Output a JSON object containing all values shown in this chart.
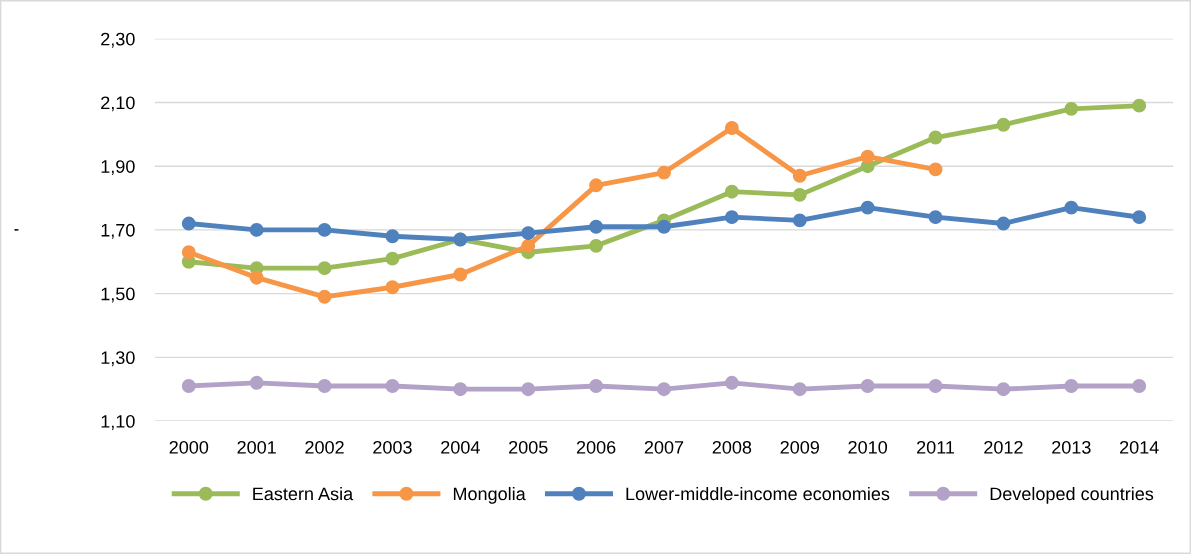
{
  "chart_data": {
    "type": "line",
    "ylabel": "'",
    "categories": [
      "2000",
      "2001",
      "2002",
      "2003",
      "2004",
      "2005",
      "2006",
      "2007",
      "2008",
      "2009",
      "2010",
      "2011",
      "2012",
      "2013",
      "2014"
    ],
    "series": [
      {
        "name": "Eastern Asia",
        "color": "#9bbb59",
        "values": [
          1.6,
          1.58,
          1.58,
          1.61,
          1.67,
          1.63,
          1.65,
          1.73,
          1.82,
          1.81,
          1.9,
          1.99,
          2.03,
          2.08,
          2.09
        ]
      },
      {
        "name": "Mongolia",
        "color": "#f79646",
        "values": [
          1.63,
          1.55,
          1.49,
          1.52,
          1.56,
          1.65,
          1.84,
          1.88,
          2.02,
          1.87,
          1.93,
          1.89,
          null,
          null,
          null
        ]
      },
      {
        "name": "Lower-middle-income economies",
        "color": "#4f81bd",
        "values": [
          1.72,
          1.7,
          1.7,
          1.68,
          1.67,
          1.69,
          1.71,
          1.71,
          1.74,
          1.73,
          1.77,
          1.74,
          1.72,
          1.77,
          1.74
        ]
      },
      {
        "name": "Developed countries",
        "color": "#b3a2c7",
        "values": [
          1.21,
          1.22,
          1.21,
          1.21,
          1.2,
          1.2,
          1.21,
          1.2,
          1.22,
          1.2,
          1.21,
          1.21,
          1.2,
          1.21,
          1.21
        ]
      }
    ],
    "ylim": [
      1.1,
      2.3
    ],
    "yticks": [
      {
        "value": 1.1,
        "label": "1,10"
      },
      {
        "value": 1.3,
        "label": "1,30"
      },
      {
        "value": 1.5,
        "label": "1,50"
      },
      {
        "value": 1.7,
        "label": "1,70"
      },
      {
        "value": 1.9,
        "label": "1,90"
      },
      {
        "value": 2.1,
        "label": "2,10"
      },
      {
        "value": 2.3,
        "label": "2,30"
      }
    ],
    "grid": "y",
    "legend": "bottom",
    "marker": "circle",
    "line_style": "solid"
  }
}
